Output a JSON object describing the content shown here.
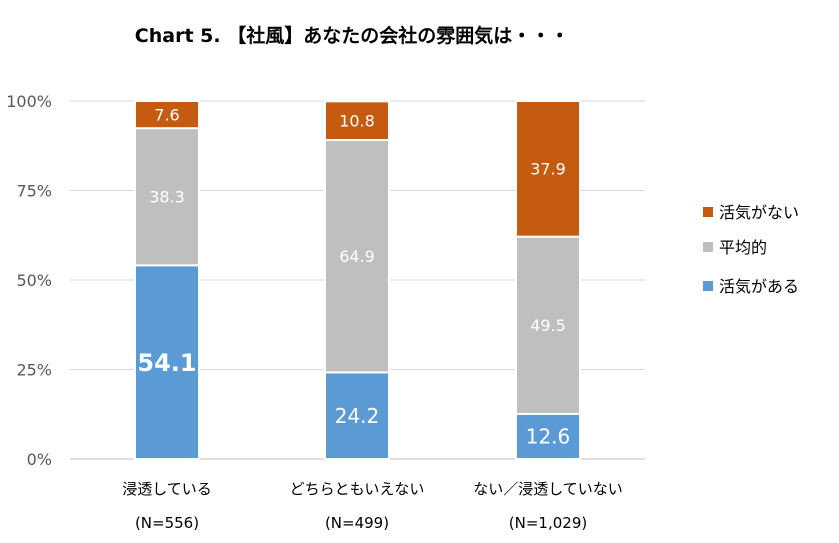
{
  "chart_data": {
    "type": "bar",
    "stacked": true,
    "title": "Chart 5. 【社風】あなたの会社の雰囲気は・・・",
    "xlabel": "",
    "ylabel": "",
    "ylim": [
      0,
      100
    ],
    "y_ticks": [
      "0%",
      "25%",
      "50%",
      "75%",
      "100%"
    ],
    "grid": true,
    "legend_position": "right",
    "categories": [
      "浸透している",
      "どちらともいえない",
      "ない／浸透していない"
    ],
    "category_counts": [
      "(N=556)",
      "(N=499)",
      "(N=1,029)"
    ],
    "series": [
      {
        "name": "活気がある",
        "values": [
          54.1,
          24.2,
          12.6
        ],
        "color": "#5B9BD5"
      },
      {
        "name": "平均的",
        "values": [
          38.3,
          64.9,
          49.5
        ],
        "color": "#BFBFBF"
      },
      {
        "name": "活気がない",
        "values": [
          7.6,
          10.8,
          37.9
        ],
        "color": "#C55A11"
      }
    ],
    "legend_order": [
      "活気がない",
      "平均的",
      "活気がある"
    ]
  }
}
